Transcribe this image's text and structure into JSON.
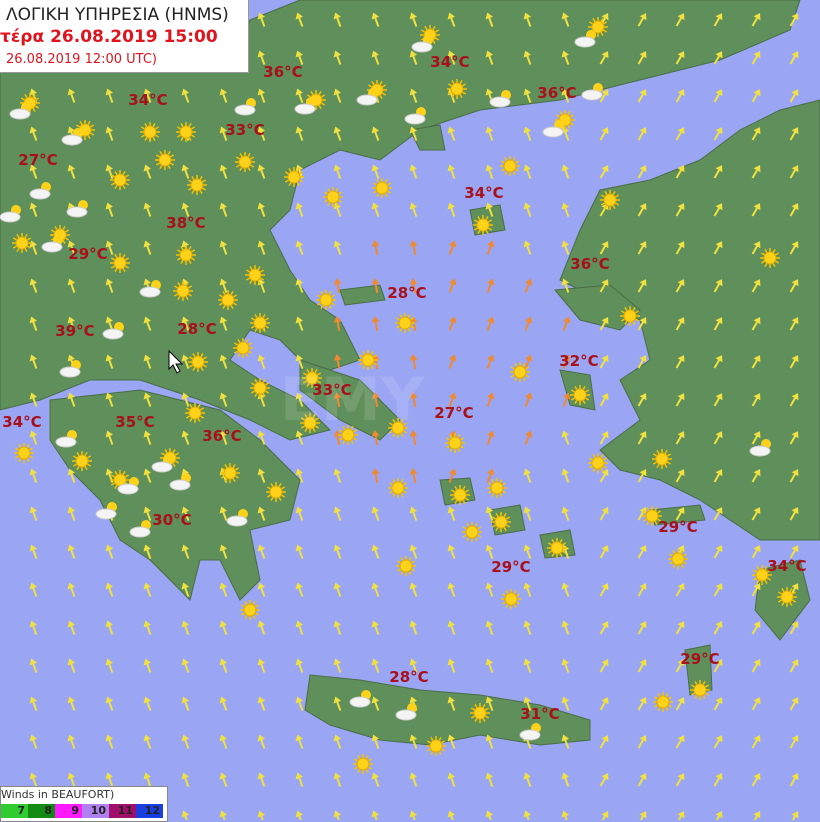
{
  "header": {
    "title": "ΛΟΓΙΚΗ ΥΠΗΡΕΣΙΑ (HNMS)",
    "forecast": "τέρα 26.08.2019 15:00",
    "base_run": "26.08.2019 12:00 UTC)"
  },
  "colors": {
    "sea": "#9aa6f4",
    "land": "#5f8f5a",
    "temp_text": "#a8101a",
    "header_red": "#e0141e"
  },
  "temperatures": [
    "36°C",
    "34°C",
    "34°C",
    "33°C",
    "36°C",
    "27°C",
    "34°C",
    "38°C",
    "29°C",
    "36°C",
    "28°C",
    "39°C",
    "28°C",
    "32°C",
    "33°C",
    "34°C",
    "35°C",
    "36°C",
    "27°C",
    "30°C",
    "29°C",
    "29°C",
    "34°C",
    "29°C",
    "28°C",
    "31°C"
  ],
  "legend": {
    "title": "Winds in BEAUFORT)",
    "levels": [
      {
        "label": "7",
        "color": "#2ecc2e"
      },
      {
        "label": "8",
        "color": "#138a13"
      },
      {
        "label": "9",
        "color": "#ff1aff"
      },
      {
        "label": "10",
        "color": "#b07ff0"
      },
      {
        "label": "11",
        "color": "#a0106a"
      },
      {
        "label": "12",
        "color": "#1a3fe0"
      }
    ]
  },
  "icons": {
    "weather": "sun-icon",
    "cloud": "sun-cloud-icon",
    "wind": "wind-arrow-icon"
  }
}
